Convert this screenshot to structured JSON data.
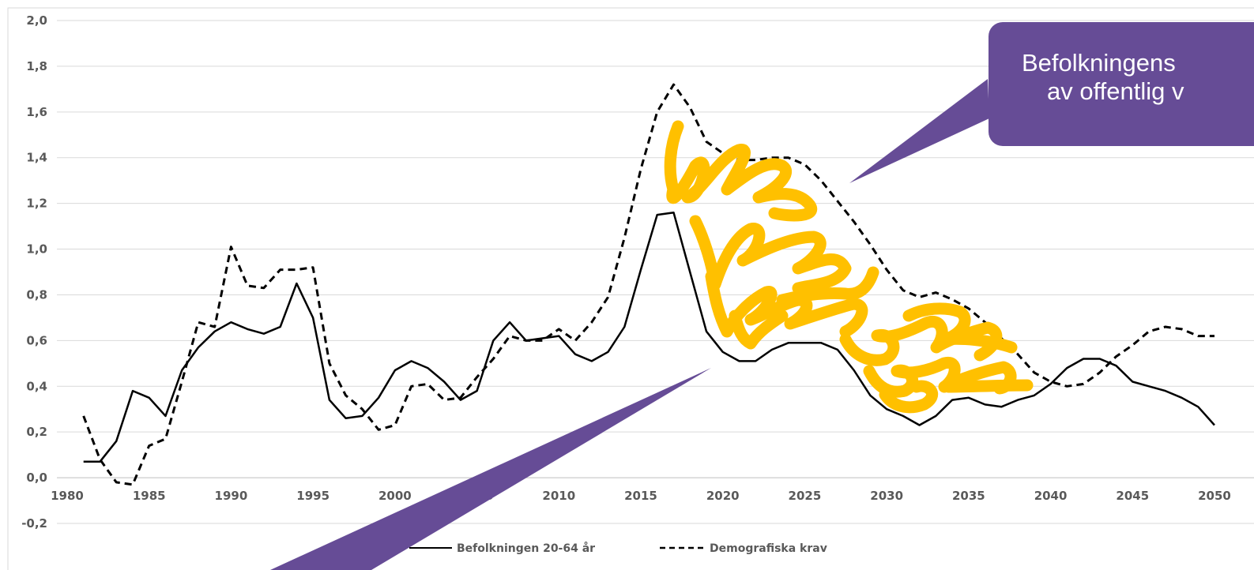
{
  "colors": {
    "callout": "#664c96",
    "scribble": "#ffc000",
    "line": "#000000",
    "tick_text": "#595959",
    "grid": "#d9d9d9"
  },
  "callout": {
    "line1": "Befolkningens",
    "line2": "av offentlig v"
  },
  "chart_data": {
    "type": "line",
    "title": "",
    "xlabel": "",
    "ylabel": "",
    "xlim": [
      1980,
      2050
    ],
    "ylim": [
      -0.2,
      2.0
    ],
    "grid": true,
    "legend_position": "bottom",
    "x_ticks": [
      "1980",
      "1985",
      "1990",
      "1995",
      "2000",
      "2005",
      "2010",
      "2015",
      "2020",
      "2025",
      "2030",
      "2035",
      "2040",
      "2045",
      "2050"
    ],
    "y_ticks": [
      "2,0",
      "1,8",
      "1,6",
      "1,4",
      "1,2",
      "1,0",
      "0,8",
      "0,6",
      "0,4",
      "0,2",
      "0,0",
      "-0,2"
    ],
    "x": [
      1981,
      1982,
      1983,
      1984,
      1985,
      1986,
      1987,
      1988,
      1989,
      1990,
      1991,
      1992,
      1993,
      1994,
      1995,
      1996,
      1997,
      1998,
      1999,
      2000,
      2001,
      2002,
      2003,
      2004,
      2005,
      2006,
      2007,
      2008,
      2009,
      2010,
      2011,
      2012,
      2013,
      2014,
      2015,
      2016,
      2017,
      2018,
      2019,
      2020,
      2021,
      2022,
      2023,
      2024,
      2025,
      2026,
      2027,
      2028,
      2029,
      2030,
      2031,
      2032,
      2033,
      2034,
      2035,
      2036,
      2037,
      2038,
      2039,
      2040,
      2041,
      2042,
      2043,
      2044,
      2045,
      2046,
      2047,
      2048,
      2049,
      2050
    ],
    "series": [
      {
        "name": "Befolkningen 20-64 år",
        "style": "solid",
        "values": [
          0.07,
          0.07,
          0.16,
          0.38,
          0.35,
          0.27,
          0.47,
          0.57,
          0.64,
          0.68,
          0.65,
          0.63,
          0.66,
          0.85,
          0.7,
          0.34,
          0.26,
          0.27,
          0.35,
          0.47,
          0.51,
          0.48,
          0.42,
          0.34,
          0.38,
          0.6,
          0.68,
          0.6,
          0.61,
          0.62,
          0.54,
          0.51,
          0.55,
          0.66,
          0.91,
          1.15,
          1.16,
          0.9,
          0.64,
          0.55,
          0.51,
          0.51,
          0.56,
          0.59,
          0.59,
          0.59,
          0.56,
          0.47,
          0.36,
          0.3,
          0.27,
          0.23,
          0.27,
          0.34,
          0.35,
          0.32,
          0.31,
          0.34,
          0.36,
          0.41,
          0.48,
          0.52,
          0.52,
          0.49,
          0.42,
          0.4,
          0.38,
          0.35,
          0.31,
          0.23
        ]
      },
      {
        "name": "Demografiska krav",
        "style": "dashed",
        "values": [
          0.27,
          0.08,
          -0.02,
          -0.03,
          0.14,
          0.17,
          0.42,
          0.68,
          0.66,
          1.01,
          0.84,
          0.83,
          0.91,
          0.91,
          0.92,
          0.5,
          0.36,
          0.3,
          0.21,
          0.23,
          0.4,
          0.41,
          0.34,
          0.35,
          0.44,
          0.52,
          0.62,
          0.6,
          0.6,
          0.65,
          0.6,
          0.68,
          0.79,
          1.05,
          1.35,
          1.6,
          1.72,
          1.62,
          1.47,
          1.42,
          1.39,
          1.39,
          1.4,
          1.4,
          1.37,
          1.3,
          1.21,
          1.12,
          1.02,
          0.91,
          0.82,
          0.79,
          0.81,
          0.78,
          0.74,
          0.68,
          0.61,
          0.54,
          0.46,
          0.42,
          0.4,
          0.41,
          0.46,
          0.53,
          0.58,
          0.64,
          0.66,
          0.65,
          0.62,
          0.62
        ]
      }
    ]
  }
}
